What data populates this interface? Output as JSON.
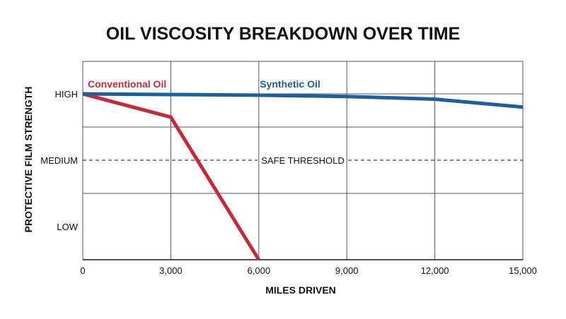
{
  "chart_data": {
    "type": "line",
    "title": "OIL VISCOSITY BREAKDOWN OVER TIME",
    "xlabel": "MILES DRIVEN",
    "ylabel": "PROTECTIVE FILM STRENGTH",
    "xlim": [
      0,
      15000
    ],
    "ylim": [
      0,
      2.5
    ],
    "x_ticks": [
      {
        "value": 0,
        "label": "0"
      },
      {
        "value": 3000,
        "label": "3,000"
      },
      {
        "value": 6000,
        "label": "6,000"
      },
      {
        "value": 9000,
        "label": "9,000"
      },
      {
        "value": 12000,
        "label": "12,000"
      },
      {
        "value": 15000,
        "label": "15,000"
      }
    ],
    "y_ticks": [
      {
        "value": 2.5,
        "label": "HIGH"
      },
      {
        "value": 1.5,
        "label": "MEDIUM"
      },
      {
        "value": 0.5,
        "label": "LOW"
      }
    ],
    "grid": true,
    "series": [
      {
        "name": "Conventional Oil",
        "color": "#c8283a",
        "points": [
          [
            0,
            2.5
          ],
          [
            3000,
            2.15
          ],
          [
            6000,
            0
          ]
        ]
      },
      {
        "name": "Synthetic Oil",
        "color": "#1d5f9a",
        "points": [
          [
            0,
            2.5
          ],
          [
            3000,
            2.49
          ],
          [
            6000,
            2.48
          ],
          [
            9000,
            2.46
          ],
          [
            12000,
            2.42
          ],
          [
            15000,
            2.3
          ]
        ]
      }
    ],
    "threshold": {
      "value": 1.5,
      "label": "SAFE THRESHOLD"
    }
  }
}
